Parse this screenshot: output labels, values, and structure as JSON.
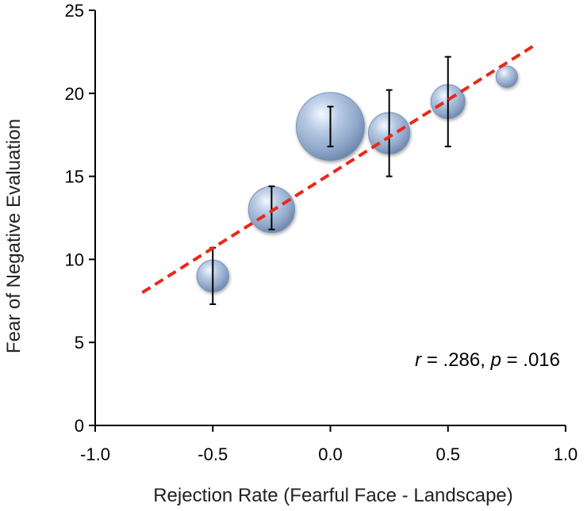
{
  "chart_data": {
    "type": "scatter",
    "xlabel": "Rejection Rate (Fearful Face - Landscape)",
    "ylabel": "Fear of Negative Evaluation",
    "xlim": [
      -1.0,
      1.0
    ],
    "ylim": [
      0,
      25
    ],
    "x_ticks": [
      "-1.0",
      "-0.5",
      "0.0",
      "0.5",
      "1.0"
    ],
    "y_ticks": [
      "0",
      "5",
      "10",
      "15",
      "20",
      "25"
    ],
    "grid": false,
    "points": [
      {
        "x": -0.5,
        "y": 9.0,
        "y_low": 7.3,
        "y_high": 10.7,
        "relative_size": 0.22
      },
      {
        "x": -0.25,
        "y": 13.0,
        "y_low": 11.8,
        "y_high": 14.4,
        "relative_size": 0.46
      },
      {
        "x": 0.0,
        "y": 18.0,
        "y_low": 16.8,
        "y_high": 19.2,
        "relative_size": 1.0
      },
      {
        "x": 0.25,
        "y": 17.6,
        "y_low": 15.0,
        "y_high": 20.2,
        "relative_size": 0.37
      },
      {
        "x": 0.5,
        "y": 19.5,
        "y_low": 16.8,
        "y_high": 22.2,
        "relative_size": 0.25
      },
      {
        "x": 0.75,
        "y": 21.0,
        "relative_size": 0.1
      }
    ],
    "fit_line": {
      "x": [
        -0.8,
        0.88
      ],
      "y": [
        8.0,
        23.0
      ],
      "color": "#e8291c",
      "style": "dashed"
    },
    "annotation": {
      "r_label": "r",
      "r_value": " = .286, ",
      "p_label": "p",
      "p_value": " = .016"
    },
    "colors": {
      "marker": "#8fa7c9",
      "errorbar": "#000000",
      "axis": "#000000"
    }
  }
}
